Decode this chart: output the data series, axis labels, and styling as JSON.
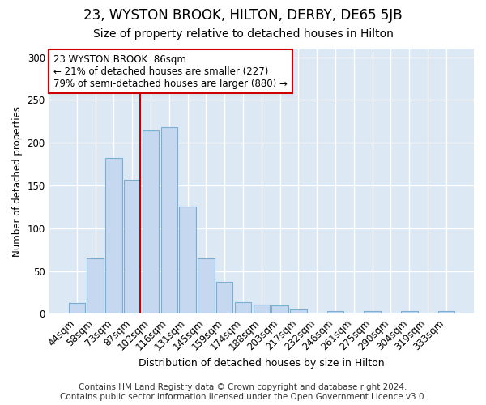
{
  "title": "23, WYSTON BROOK, HILTON, DERBY, DE65 5JB",
  "subtitle": "Size of property relative to detached houses in Hilton",
  "xlabel": "Distribution of detached houses by size in Hilton",
  "ylabel": "Number of detached properties",
  "categories": [
    "44sqm",
    "58sqm",
    "73sqm",
    "87sqm",
    "102sqm",
    "116sqm",
    "131sqm",
    "145sqm",
    "159sqm",
    "174sqm",
    "188sqm",
    "203sqm",
    "217sqm",
    "232sqm",
    "246sqm",
    "261sqm",
    "275sqm",
    "290sqm",
    "304sqm",
    "319sqm",
    "333sqm"
  ],
  "values": [
    13,
    65,
    182,
    157,
    214,
    218,
    125,
    65,
    37,
    14,
    11,
    10,
    5,
    0,
    3,
    0,
    3,
    0,
    3,
    0,
    3
  ],
  "bar_color": "#c5d8ef",
  "bar_edge_color": "#7aafd4",
  "vline_x_index": 3,
  "annotation_line1": "23 WYSTON BROOK: 86sqm",
  "annotation_line2": "← 21% of detached houses are smaller (227)",
  "annotation_line3": "79% of semi-detached houses are larger (880) →",
  "annotation_box_color": "#ffffff",
  "annotation_box_edge": "#cc0000",
  "vline_color": "#cc0000",
  "footer1": "Contains HM Land Registry data © Crown copyright and database right 2024.",
  "footer2": "Contains public sector information licensed under the Open Government Licence v3.0.",
  "ylim": [
    0,
    310
  ],
  "fig_bg_color": "#ffffff",
  "plot_bg_color": "#dde8f5",
  "title_fontsize": 12,
  "subtitle_fontsize": 10,
  "footer_fontsize": 7.5
}
